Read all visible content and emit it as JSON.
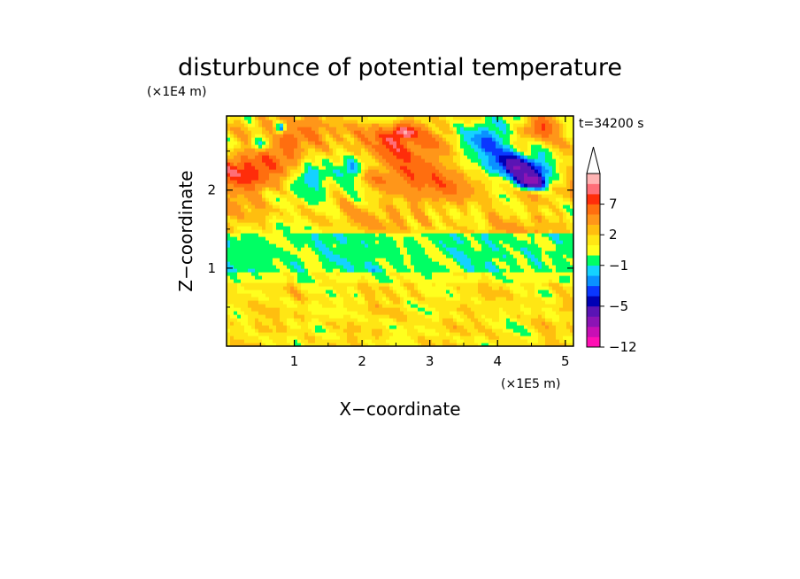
{
  "chart_data": {
    "type": "heatmap",
    "title": "disturbunce of potential temperature",
    "xlabel": "X−coordinate",
    "ylabel": "Z−coordinate",
    "x_scale_label": "(×1E5 m)",
    "y_scale_label": "(×1E4 m)",
    "time_label": "t=34200 s",
    "xlim": [
      0,
      5.12
    ],
    "ylim": [
      0,
      2.95
    ],
    "x_ticks": [
      {
        "value": 1,
        "label": "1"
      },
      {
        "value": 2,
        "label": "2"
      },
      {
        "value": 3,
        "label": "3"
      },
      {
        "value": 4,
        "label": "4"
      },
      {
        "value": 5,
        "label": "5"
      }
    ],
    "y_ticks": [
      {
        "value": 1,
        "label": "1"
      },
      {
        "value": 2,
        "label": "2"
      }
    ],
    "colorbar": {
      "levels": [
        -12,
        -11,
        -9,
        -7,
        -5,
        -4,
        -3,
        -2,
        -1,
        0,
        1,
        2,
        3,
        5,
        7,
        9,
        11
      ],
      "colors": [
        "#ff0fb4",
        "#c80fb4",
        "#8c14b4",
        "#5a14b4",
        "#0000b4",
        "#0a37ff",
        "#0a91ff",
        "#14d2ff",
        "#00ff64",
        "#ffff1e",
        "#ffe614",
        "#ffbe0f",
        "#ff9619",
        "#ff6e0f",
        "#ff2d0a",
        "#ff6e78",
        "#ffb4b4"
      ],
      "extend": "max",
      "tick_labels": [
        {
          "value": 7,
          "label": "7"
        },
        {
          "value": 2,
          "label": "2"
        },
        {
          "value": -1,
          "label": "−1"
        },
        {
          "value": -5,
          "label": "−5"
        },
        {
          "value": -12,
          "label": "−12"
        }
      ]
    },
    "features": [
      {
        "x": 0.2,
        "z": 2.2,
        "value": 6,
        "rx": 0.5,
        "rz": 0.25
      },
      {
        "x": 0.9,
        "z": 2.6,
        "value": 4,
        "rx": 0.45,
        "rz": 0.3
      },
      {
        "x": 1.2,
        "z": 2.2,
        "value": -4,
        "rx": 0.35,
        "rz": 0.2
      },
      {
        "x": 2.5,
        "z": 2.5,
        "value": 5,
        "rx": 0.7,
        "rz": 0.35
      },
      {
        "x": 3.2,
        "z": 2.0,
        "value": 3,
        "rx": 0.6,
        "rz": 0.3
      },
      {
        "x": 3.8,
        "z": 2.65,
        "value": -5,
        "rx": 0.5,
        "rz": 0.25
      },
      {
        "x": 4.4,
        "z": 2.3,
        "value": -6,
        "rx": 0.45,
        "rz": 0.2
      },
      {
        "x": 4.6,
        "z": 2.8,
        "value": 7,
        "rx": 0.3,
        "rz": 0.15
      },
      {
        "x": 4.5,
        "z": 2.1,
        "value": -7,
        "rx": 0.25,
        "rz": 0.1
      },
      {
        "x": 0.5,
        "z": 2.6,
        "value": -5,
        "rx": 0.15,
        "rz": 0.1
      },
      {
        "x": 0.8,
        "z": 2.8,
        "value": -8,
        "rx": 0.1,
        "rz": 0.08
      },
      {
        "x": 2.6,
        "z": 2.75,
        "value": 7,
        "rx": 0.2,
        "rz": 0.1
      },
      {
        "x": 1.9,
        "z": 2.3,
        "value": -5,
        "rx": 0.25,
        "rz": 0.15
      }
    ]
  }
}
